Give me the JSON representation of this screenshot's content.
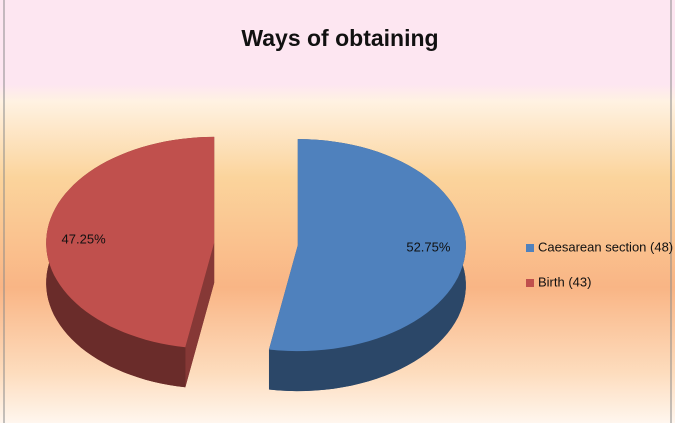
{
  "chart_data": {
    "type": "pie",
    "title": "Ways of obtaining",
    "categories": [
      "Caesarean section (48)",
      "Birth (43)"
    ],
    "values": [
      52.75,
      47.25
    ],
    "value_labels": [
      "52.75%",
      "47.25%"
    ],
    "colors": [
      "#4f81bd",
      "#c0504d"
    ],
    "legend": "right",
    "exploded": true,
    "three_d": true
  }
}
